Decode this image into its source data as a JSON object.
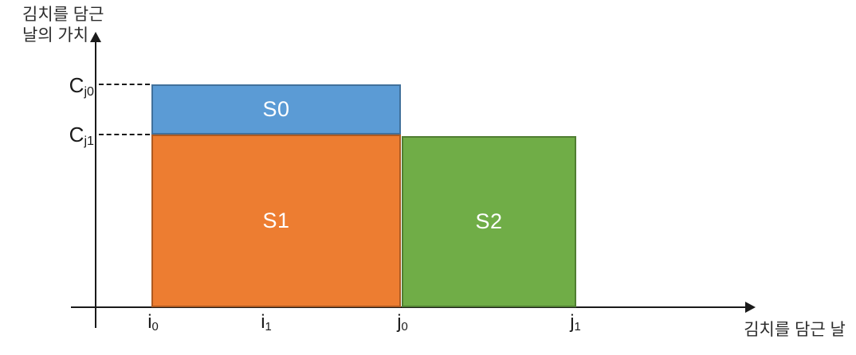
{
  "y_axis": {
    "title": "김치를 담근\n날의 가치",
    "ticks": [
      {
        "base": "C",
        "sub": "j0"
      },
      {
        "base": "C",
        "sub": "j1"
      }
    ]
  },
  "x_axis": {
    "title": "김치를 담근 날",
    "ticks": [
      {
        "base": "i",
        "sub": "0"
      },
      {
        "base": "i",
        "sub": "1"
      },
      {
        "base": "j",
        "sub": "0"
      },
      {
        "base": "j",
        "sub": "1"
      }
    ]
  },
  "regions": [
    {
      "label": "S0",
      "fill": "#5B9BD5",
      "border": "#41719C"
    },
    {
      "label": "S1",
      "fill": "#ED7D31",
      "border": "#AE5A21"
    },
    {
      "label": "S2",
      "fill": "#70AD47",
      "border": "#507E32"
    }
  ],
  "colors": {
    "axis": "#1a1a1a",
    "background": "#ffffff",
    "region_label_text": "#ffffff"
  },
  "chart_data": {
    "type": "area",
    "title": "",
    "xlabel": "김치를 담근 날",
    "ylabel": "김치를 담근 날의 가치",
    "x_ticks": [
      "i0",
      "i1",
      "j0",
      "j1"
    ],
    "y_ticks": [
      "Cj0",
      "Cj1"
    ],
    "grid": false,
    "legend": false,
    "regions": [
      {
        "name": "S0",
        "x_range": [
          "i0",
          "j0"
        ],
        "y_range": [
          "Cj1",
          "Cj0"
        ],
        "color": "#5B9BD5",
        "description": "step from Cj0 down to Cj1 at j0"
      },
      {
        "name": "S1",
        "x_range": [
          "i0",
          "j0"
        ],
        "y_range": [
          0,
          "Cj1"
        ],
        "color": "#ED7D31"
      },
      {
        "name": "S2",
        "x_range": [
          "j0",
          "j1"
        ],
        "y_range": [
          0,
          "Cj1"
        ],
        "color": "#70AD47"
      }
    ],
    "annotations": [
      {
        "text": "Cj0",
        "guide": "dashed horizontal line from y-axis to top of S0"
      },
      {
        "text": "Cj1",
        "guide": "dashed horizontal line from y-axis to top of S1"
      }
    ]
  }
}
